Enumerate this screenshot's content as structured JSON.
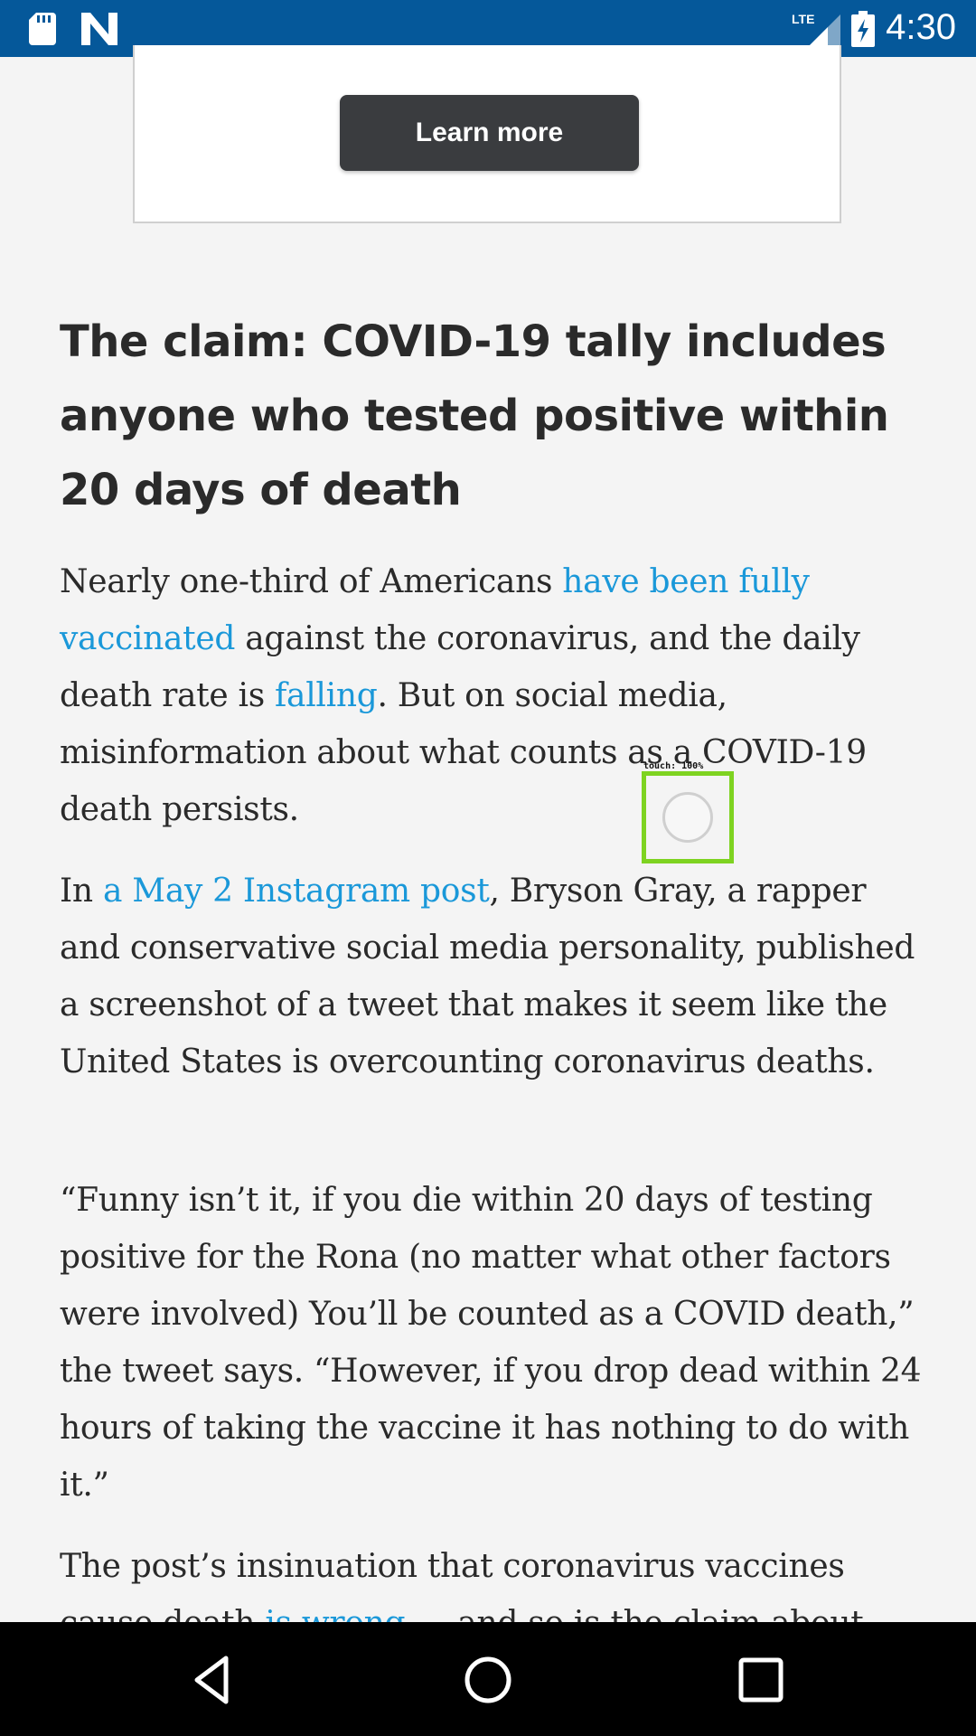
{
  "status_bar": {
    "time": "4:30",
    "network": "LTE"
  },
  "ad": {
    "button_label": "Learn more"
  },
  "article": {
    "headline": "The claim: COVID-19 tally includes anyone who tested positive within 20 days of death",
    "p1": {
      "t1": "Nearly one-third of Americans ",
      "link1": "have been fully vaccinated",
      "t2": " against the coronavirus, and the daily death rate is ",
      "link2": "falling",
      "t3": ". But on social media, misinformation about what counts as a COVID-19 death persists."
    },
    "p2": {
      "t1": "In ",
      "link1": "a May 2 Instagram post",
      "t2": ", Bryson Gray, a rapper and conservative social media personality, published a screenshot of a tweet that makes it seem like the United States is overcounting coronavirus deaths."
    },
    "p3": "“Funny isn’t it, if you die within 20 days of testing positive for the Rona (no matter what other factors were involved) You’ll be counted as a COVID death,” the tweet says. “However, if you drop dead within 24 hours of taking the vaccine it has nothing to do with it.”",
    "p4": {
      "t1": "The post’s insinuation that coronavirus vaccines cause death ",
      "link1": "is wrong",
      "t2": " — and so is the claim about"
    }
  },
  "touch_indicator": {
    "label": "touch: 100%"
  }
}
